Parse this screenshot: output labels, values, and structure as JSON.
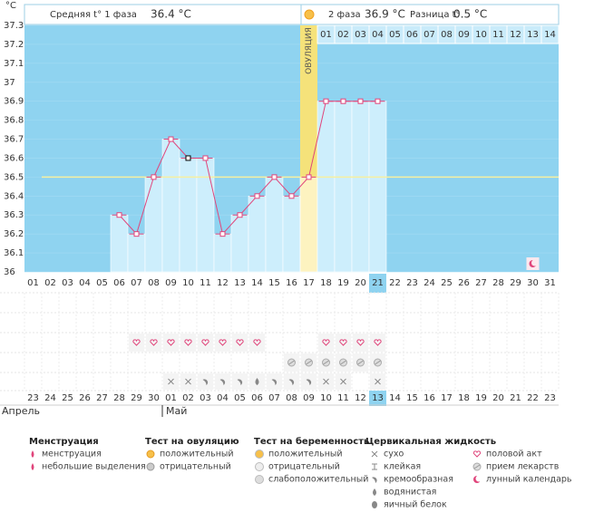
{
  "header": {
    "phase1_label": "Средняя t° 1 фаза",
    "phase1_value": "36.4 °C",
    "phase2_label": "2 фаза",
    "phase2_value": "36.9 °C",
    "diff_label": "Разница t°",
    "diff_value": "0.5 °C"
  },
  "chart_data": {
    "type": "line",
    "y_unit": "°C",
    "categories": [
      "01",
      "02",
      "03",
      "04",
      "05",
      "06",
      "07",
      "08",
      "09",
      "10",
      "11",
      "12",
      "13",
      "14",
      "15",
      "16",
      "17",
      "18",
      "19",
      "20",
      "21",
      "22",
      "23",
      "24",
      "25",
      "26",
      "27",
      "28",
      "29",
      "30",
      "31"
    ],
    "values": [
      null,
      null,
      null,
      null,
      null,
      36.3,
      36.2,
      36.5,
      36.7,
      36.6,
      36.6,
      36.2,
      36.3,
      36.4,
      36.5,
      36.4,
      36.5,
      36.9,
      36.9,
      36.9,
      36.9,
      null,
      null,
      null,
      null,
      null,
      null,
      null,
      null,
      null,
      null
    ],
    "ylim": [
      36,
      37.3
    ],
    "yticks": [
      36,
      36.1,
      36.2,
      36.3,
      36.4,
      36.5,
      36.6,
      36.7,
      36.8,
      36.9,
      37,
      37.1,
      37.2,
      37.3
    ],
    "ovulation_label": "ОВУЛЯЦИЯ",
    "phase2_days": [
      "01",
      "02",
      "03",
      "04",
      "05",
      "06",
      "07",
      "08",
      "09",
      "10",
      "11",
      "12",
      "13",
      "14"
    ],
    "coverline": 36.5,
    "line_color": "#e0457b",
    "bar_color": "#cdeefc",
    "background": "#8fd3f0"
  },
  "calendar": {
    "dates": [
      "23",
      "24",
      "25",
      "26",
      "27",
      "28",
      "29",
      "30",
      "01",
      "02",
      "03",
      "04",
      "05",
      "06",
      "07",
      "08",
      "09",
      "10",
      "11",
      "12",
      "13",
      "14",
      "15",
      "16",
      "17",
      "18",
      "19",
      "20",
      "21",
      "22",
      "23"
    ],
    "months": [
      "Апрель",
      "Май"
    ]
  },
  "legend": {
    "groups": [
      {
        "title": "Менструация",
        "items": [
          "менструация",
          "небольшие выделения"
        ]
      },
      {
        "title": "Тест на овуляцию",
        "items": [
          "положительный",
          "отрицательный"
        ]
      },
      {
        "title": "Тест на беременность",
        "items": [
          "положительный",
          "отрицательный",
          "слабоположительный"
        ]
      },
      {
        "title": "Цервикальная жидкость",
        "items": [
          "сухо",
          "клейкая",
          "кремообразная",
          "водянистая",
          "яичный белок"
        ]
      },
      {
        "title": null,
        "items": [
          "половой акт",
          "прием лекарств",
          "лунный календарь"
        ]
      }
    ]
  }
}
